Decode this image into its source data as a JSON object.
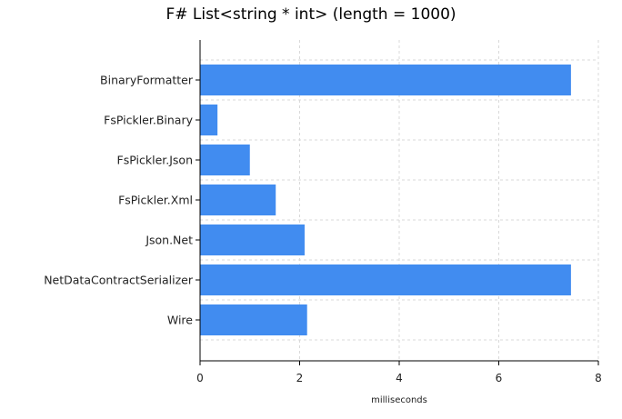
{
  "chart_data": {
    "type": "bar",
    "orientation": "horizontal",
    "title": "F# List<string * int> (length = 1000)",
    "xlabel": "milliseconds",
    "ylabel": "",
    "categories": [
      "BinaryFormatter",
      "FsPickler.Binary",
      "FsPickler.Json",
      "FsPickler.Xml",
      "Json.Net",
      "NetDataContractSerializer",
      "Wire"
    ],
    "values": [
      7.45,
      0.35,
      1.0,
      1.52,
      2.1,
      7.45,
      2.15
    ],
    "xlim": [
      0,
      8
    ],
    "xticks": [
      0,
      2,
      4,
      6,
      8
    ],
    "bar_color": "#418CF0",
    "grid": true,
    "grid_color": "#d9d9d9"
  }
}
